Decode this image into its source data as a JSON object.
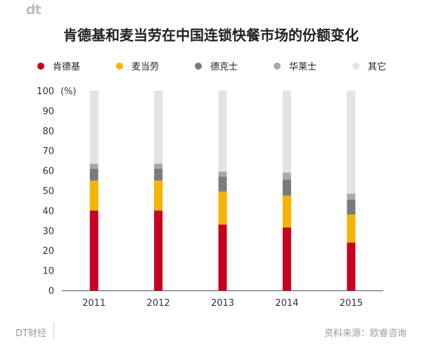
{
  "header": {
    "logo": "dt",
    "title": "肯德基和麦当劳在中国连锁快餐市场的份额变化"
  },
  "legend": [
    {
      "label": "肯德基",
      "color": "#c8001e"
    },
    {
      "label": "麦当劳",
      "color": "#f6b400"
    },
    {
      "label": "德克士",
      "color": "#7b7b7b"
    },
    {
      "label": "华莱士",
      "color": "#a9a9a9"
    },
    {
      "label": "其它",
      "color": "#e3e3e3"
    }
  ],
  "footer": {
    "brand": "DT财经",
    "source": "资料来源：欧睿咨询"
  },
  "chart_data": {
    "type": "bar",
    "stacked": true,
    "title": "肯德基和麦当劳在中国连锁快餐市场的份额变化",
    "unit_label": "(%)",
    "categories": [
      "2011",
      "2012",
      "2013",
      "2014",
      "2015"
    ],
    "ylim": [
      0,
      100
    ],
    "yticks": [
      0,
      10,
      20,
      30,
      40,
      50,
      60,
      70,
      80,
      90,
      100
    ],
    "grid": false,
    "legend_position": "top",
    "series": [
      {
        "name": "肯德基",
        "color": "#c8001e",
        "values": [
          40.0,
          40.0,
          33.0,
          31.5,
          24.0
        ]
      },
      {
        "name": "麦当劳",
        "color": "#f6b400",
        "values": [
          15.0,
          15.0,
          16.5,
          16.0,
          14.0
        ]
      },
      {
        "name": "德克士",
        "color": "#7b7b7b",
        "values": [
          6.0,
          6.0,
          7.5,
          8.0,
          7.5
        ]
      },
      {
        "name": "华莱士",
        "color": "#a9a9a9",
        "values": [
          2.5,
          2.5,
          2.5,
          3.5,
          3.0
        ]
      },
      {
        "name": "其它",
        "color": "#e3e3e3",
        "values": [
          36.5,
          36.5,
          40.5,
          41.0,
          51.5
        ]
      }
    ]
  }
}
